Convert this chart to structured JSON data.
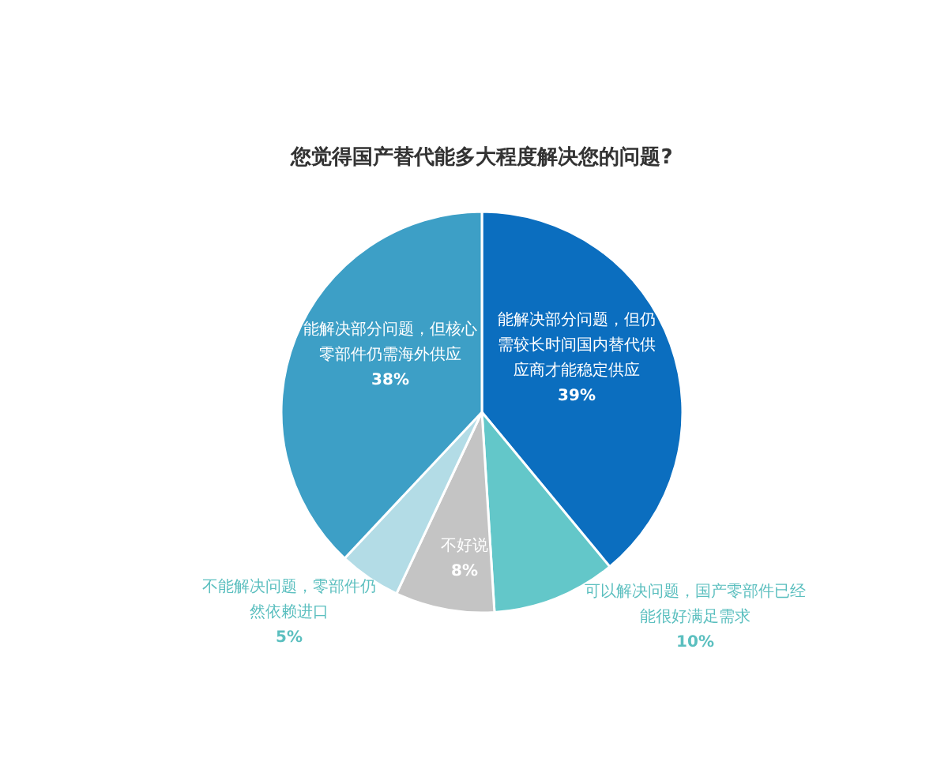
{
  "chart_data": {
    "type": "pie",
    "title": "您觉得国产替代能多大程度解决您的问题?",
    "categories": [
      "能解决部分问题，但仍需较长时间国内替代供应商才能稳定供应",
      "可以解决问题，国产零部件已经能很好满足需求",
      "不好说",
      "不能解决问题，零部件仍然依赖进口",
      "能解决部分问题，但核心零部件仍需海外供应"
    ],
    "values": [
      39,
      10,
      8,
      5,
      38
    ],
    "colors": [
      "#0b6ebf",
      "#63c7c9",
      "#c4c4c4",
      "#b3dce6",
      "#3d9fc6"
    ],
    "value_labels": [
      "39%",
      "10%",
      "8%",
      "5%",
      "38%"
    ]
  }
}
